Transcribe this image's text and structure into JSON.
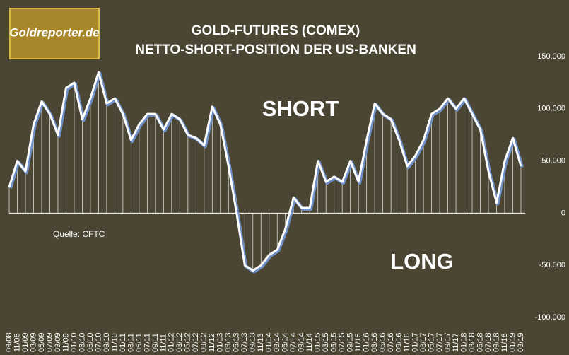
{
  "chart_data": {
    "type": "line",
    "title": "GOLD-FUTURES (COMEX)",
    "subtitle": "NETTO-SHORT-POSITION DER US-BANKEN",
    "logo": "Goldreporter.de",
    "source": "Quelle: CFTC",
    "annotations": [
      "SHORT",
      "LONG"
    ],
    "categories": [
      "09/08",
      "11/08",
      "01/09",
      "03/09",
      "05/09",
      "07/09",
      "09/09",
      "11/09",
      "01/10",
      "03/10",
      "05/10",
      "07/10",
      "09/10",
      "11/10",
      "01/11",
      "03/11",
      "05/11",
      "07/11",
      "09/11",
      "11/11",
      "01/12",
      "03/12",
      "05/12",
      "07/12",
      "09/12",
      "11/12",
      "01/13",
      "03/13",
      "05/13",
      "07/13",
      "09/13",
      "11/13",
      "01/14",
      "03/14",
      "05/14",
      "07/14",
      "09/14",
      "11/14",
      "01/15",
      "03/15",
      "05/15",
      "07/15",
      "09/15",
      "11/15",
      "01/16",
      "03/16",
      "05/16",
      "07/16",
      "09/16",
      "11/16",
      "01/17",
      "03/17",
      "05/17",
      "07/17",
      "09/17",
      "11/17",
      "01/18",
      "03/18",
      "05/18",
      "07/18",
      "09/18",
      "11/18",
      "01/19",
      "03/19"
    ],
    "series": [
      {
        "name": "Netto-Short-Position",
        "color": "#ffffff",
        "values": [
          25000,
          50000,
          40000,
          85000,
          107000,
          95000,
          75000,
          120000,
          125000,
          90000,
          110000,
          135000,
          105000,
          110000,
          95000,
          70000,
          85000,
          95000,
          95000,
          80000,
          95000,
          90000,
          75000,
          72000,
          65000,
          102000,
          85000,
          45000,
          0,
          -50000,
          -55000,
          -50000,
          -40000,
          -35000,
          -15000,
          15000,
          5000,
          5000,
          50000,
          30000,
          35000,
          30000,
          50000,
          30000,
          70000,
          105000,
          95000,
          90000,
          70000,
          45000,
          55000,
          70000,
          95000,
          100000,
          110000,
          100000,
          110000,
          95000,
          80000,
          40000,
          10000,
          50000,
          72000,
          45000
        ]
      }
    ],
    "ylim": [
      -100000,
      150000
    ],
    "yticks": [
      {
        "value": -100000,
        "label": "-100.000"
      },
      {
        "value": -50000,
        "label": "-50.000"
      },
      0,
      {
        "value": 50000,
        "label": "50.000"
      },
      {
        "value": 100000,
        "label": "100.000"
      },
      {
        "value": 150000,
        "label": "150.000"
      }
    ],
    "grid": false
  }
}
